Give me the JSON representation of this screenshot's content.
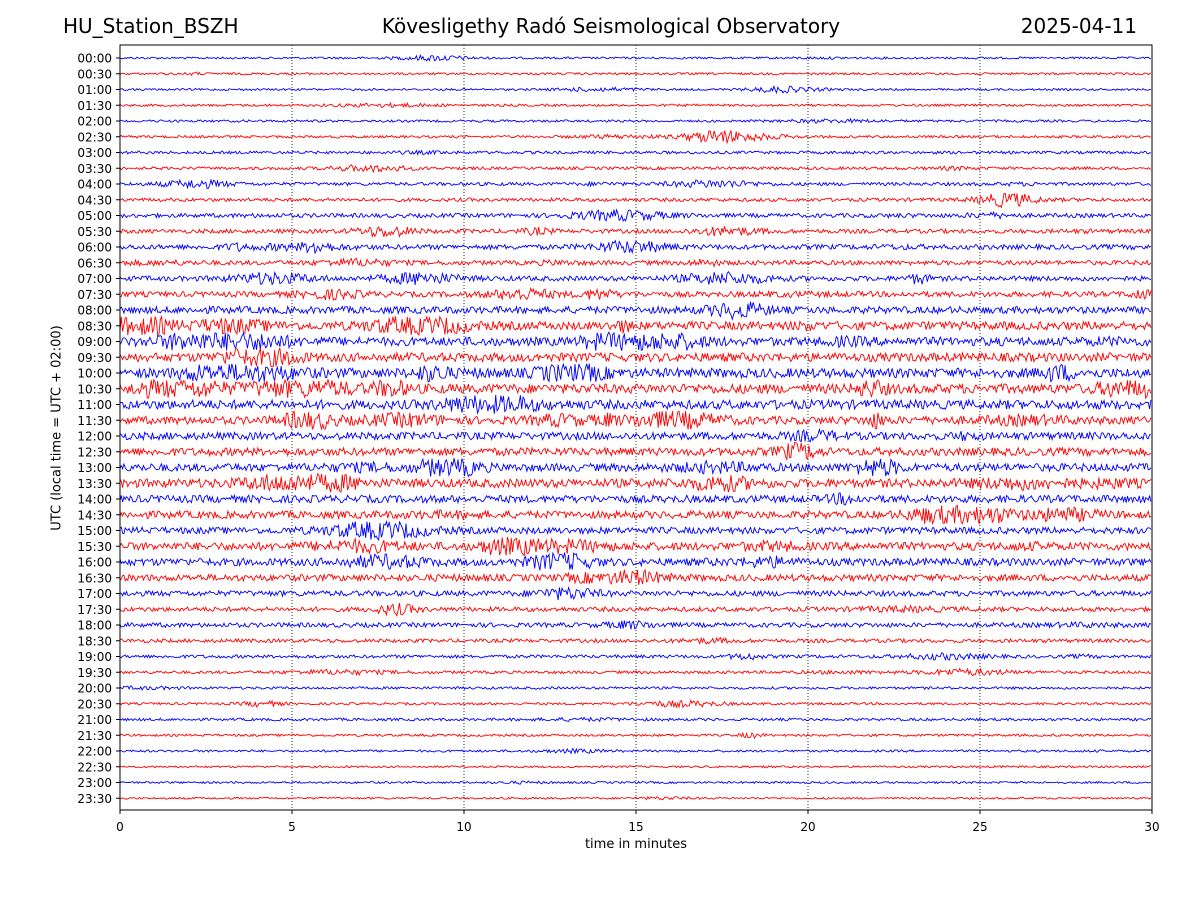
{
  "header": {
    "left": "HU_Station_BSZH",
    "center": "Kövesligethy Radó Seismological Observatory",
    "right": "2025-04-11"
  },
  "chart_data": {
    "type": "line",
    "title": "Kövesligethy Radó Seismological Observatory",
    "xlabel": "time in minutes",
    "ylabel": "UTC (local time = UTC + 02:00)",
    "xlim": [
      0,
      30
    ],
    "x_ticks": [
      "0",
      "5",
      "10",
      "15",
      "20",
      "25",
      "30"
    ],
    "vertical_gridlines": [
      5,
      10,
      15,
      20,
      25
    ],
    "trace_colors": [
      "#0000ff",
      "#ff0000"
    ],
    "rows": [
      {
        "label": "00:00",
        "activity": 0.1
      },
      {
        "label": "00:30",
        "activity": 0.12
      },
      {
        "label": "01:00",
        "activity": 0.1
      },
      {
        "label": "01:30",
        "activity": 0.14
      },
      {
        "label": "02:00",
        "activity": 0.14
      },
      {
        "label": "02:30",
        "activity": 0.16
      },
      {
        "label": "03:00",
        "activity": 0.2
      },
      {
        "label": "03:30",
        "activity": 0.2
      },
      {
        "label": "04:00",
        "activity": 0.25
      },
      {
        "label": "04:30",
        "activity": 0.28
      },
      {
        "label": "05:00",
        "activity": 0.35
      },
      {
        "label": "05:30",
        "activity": 0.35
      },
      {
        "label": "06:00",
        "activity": 0.45
      },
      {
        "label": "06:30",
        "activity": 0.4
      },
      {
        "label": "07:00",
        "activity": 0.45
      },
      {
        "label": "07:30",
        "activity": 0.5
      },
      {
        "label": "08:00",
        "activity": 0.7
      },
      {
        "label": "08:30",
        "activity": 0.85
      },
      {
        "label": "09:00",
        "activity": 0.9
      },
      {
        "label": "09:30",
        "activity": 0.9
      },
      {
        "label": "10:00",
        "activity": 1.0
      },
      {
        "label": "10:30",
        "activity": 1.0
      },
      {
        "label": "11:00",
        "activity": 0.95
      },
      {
        "label": "11:30",
        "activity": 0.8
      },
      {
        "label": "12:00",
        "activity": 0.75
      },
      {
        "label": "12:30",
        "activity": 0.8
      },
      {
        "label": "13:00",
        "activity": 0.8
      },
      {
        "label": "13:30",
        "activity": 0.9
      },
      {
        "label": "14:00",
        "activity": 0.75
      },
      {
        "label": "14:30",
        "activity": 0.75
      },
      {
        "label": "15:00",
        "activity": 0.65
      },
      {
        "label": "15:30",
        "activity": 0.8
      },
      {
        "label": "16:00",
        "activity": 0.75
      },
      {
        "label": "16:30",
        "activity": 0.65
      },
      {
        "label": "17:00",
        "activity": 0.5
      },
      {
        "label": "17:30",
        "activity": 0.4
      },
      {
        "label": "18:00",
        "activity": 0.4
      },
      {
        "label": "18:30",
        "activity": 0.3
      },
      {
        "label": "19:00",
        "activity": 0.25
      },
      {
        "label": "19:30",
        "activity": 0.2
      },
      {
        "label": "20:00",
        "activity": 0.16
      },
      {
        "label": "20:30",
        "activity": 0.14
      },
      {
        "label": "21:00",
        "activity": 0.18
      },
      {
        "label": "21:30",
        "activity": 0.14
      },
      {
        "label": "22:00",
        "activity": 0.12
      },
      {
        "label": "22:30",
        "activity": 0.1
      },
      {
        "label": "23:00",
        "activity": 0.1
      },
      {
        "label": "23:30",
        "activity": 0.08
      }
    ]
  }
}
